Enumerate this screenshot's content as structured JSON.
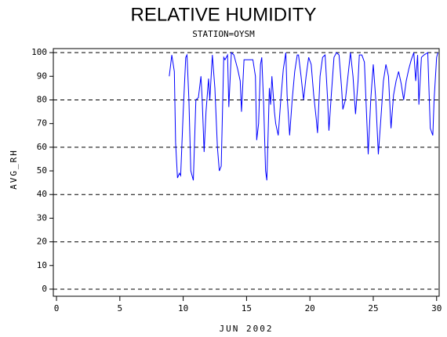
{
  "chart_data": {
    "type": "line",
    "title": "RELATIVE HUMIDITY",
    "subtitle": "STATION=OYSM",
    "y_label": "AVG_RH",
    "x_label": "JUN 2002",
    "xlim": [
      -0.25,
      30.2
    ],
    "ylim": [
      -3,
      101.7
    ],
    "xticks": [
      0,
      5,
      10,
      15,
      20,
      25,
      30
    ],
    "yticks": [
      0,
      10,
      20,
      30,
      40,
      50,
      60,
      70,
      80,
      90,
      100
    ],
    "grid_yticks": [
      0,
      20,
      40,
      60,
      80,
      100
    ],
    "series": [
      {
        "color": "#0000ff",
        "x": [
          8.9,
          9.1,
          9.3,
          9.4,
          9.55,
          9.7,
          9.8,
          10.0,
          10.2,
          10.3,
          10.45,
          10.6,
          10.8,
          11.0,
          11.2,
          11.4,
          11.5,
          11.65,
          11.8,
          12.0,
          12.1,
          12.3,
          12.5,
          12.7,
          12.85,
          13.0,
          13.2,
          13.3,
          13.5,
          13.6,
          13.8,
          14.0,
          14.3,
          14.5,
          14.6,
          14.8,
          15.2,
          15.5,
          15.7,
          15.8,
          15.95,
          16.1,
          16.2,
          16.35,
          16.5,
          16.6,
          16.8,
          16.9,
          17.0,
          17.2,
          17.3,
          17.5,
          17.7,
          17.9,
          18.1,
          18.2,
          18.4,
          18.6,
          18.8,
          19.0,
          19.1,
          19.3,
          19.5,
          19.7,
          19.9,
          20.1,
          20.3,
          20.5,
          20.6,
          20.8,
          21.0,
          21.2,
          21.4,
          21.5,
          21.7,
          21.9,
          22.1,
          22.3,
          22.5,
          22.6,
          22.8,
          23.0,
          23.2,
          23.4,
          23.6,
          23.8,
          23.9,
          24.1,
          24.3,
          24.5,
          24.6,
          24.8,
          25.0,
          25.2,
          25.4,
          25.6,
          25.8,
          26.0,
          26.2,
          26.4,
          26.6,
          26.8,
          27.0,
          27.2,
          27.4,
          27.6,
          27.8,
          28.0,
          28.2,
          28.35,
          28.5,
          28.6,
          28.8,
          29.0,
          29.3,
          29.5,
          29.7,
          29.8,
          30.0,
          30.1
        ],
        "values": [
          90,
          99,
          92,
          62,
          47,
          49,
          48,
          75,
          98,
          99,
          80,
          50,
          46,
          80,
          81,
          90,
          80,
          58,
          75,
          89,
          80,
          99,
          85,
          60,
          50,
          52,
          98,
          97,
          99,
          77,
          100,
          99,
          93,
          88,
          75,
          97,
          97,
          97,
          90,
          63,
          70,
          95,
          98,
          78,
          50,
          46,
          85,
          78,
          90,
          75,
          70,
          65,
          80,
          93,
          100,
          82,
          65,
          80,
          92,
          99,
          99,
          90,
          80,
          90,
          98,
          95,
          82,
          72,
          66,
          90,
          98,
          99,
          80,
          67,
          83,
          98,
          100,
          99,
          85,
          76,
          80,
          90,
          100,
          90,
          74,
          88,
          99,
          99,
          96,
          70,
          57,
          80,
          95,
          80,
          57,
          72,
          88,
          95,
          90,
          68,
          82,
          88,
          92,
          87,
          80,
          88,
          93,
          97,
          100,
          88,
          99,
          78,
          98,
          99,
          100,
          68,
          65,
          80,
          98,
          100
        ]
      }
    ]
  }
}
